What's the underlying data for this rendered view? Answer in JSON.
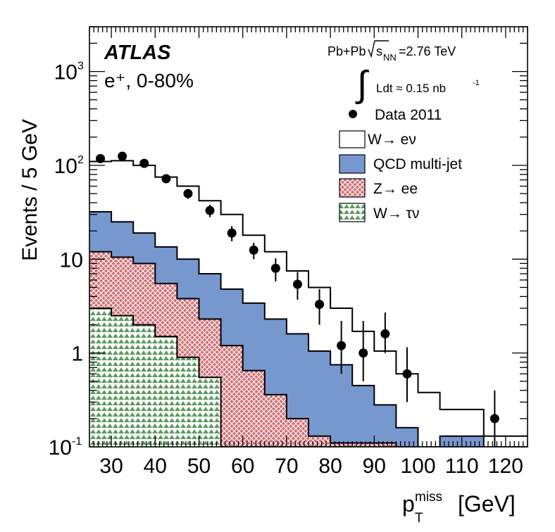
{
  "chart_data": {
    "type": "histogram-stacked-log",
    "experiment": "ATLAS",
    "channel": "e⁺, 0-80%",
    "collision": {
      "label": "Pb+Pb",
      "sqrt_prefix": "s",
      "sqrt_sub": "NN",
      "energy": "=2.76 TeV"
    },
    "luminosity": {
      "label": "Ldt ≈ 0.15 nb",
      "exp": "-1"
    },
    "ylabel": "Events / 5 GeV",
    "xlabel": {
      "base": "p",
      "sub": "T",
      "sup": "miss",
      "unit": "[GeV]"
    },
    "xlim": [
      25,
      125
    ],
    "ylim": [
      0.1,
      3000
    ],
    "yscale": "log",
    "x_ticks": [
      "30",
      "40",
      "50",
      "60",
      "70",
      "80",
      "90",
      "100",
      "110",
      "120"
    ],
    "y_ticks": [
      {
        "value": 0.1,
        "base": "10",
        "exp": "-1"
      },
      {
        "value": 1,
        "base": "1",
        "exp": ""
      },
      {
        "value": 10,
        "base": "10",
        "exp": ""
      },
      {
        "value": 100,
        "base": "10",
        "exp": "2"
      },
      {
        "value": 1000,
        "base": "10",
        "exp": "3"
      }
    ],
    "bins": [
      [
        25,
        30
      ],
      [
        30,
        35
      ],
      [
        35,
        40
      ],
      [
        40,
        45
      ],
      [
        45,
        50
      ],
      [
        50,
        55
      ],
      [
        55,
        60
      ],
      [
        60,
        65
      ],
      [
        65,
        70
      ],
      [
        70,
        75
      ],
      [
        75,
        80
      ],
      [
        80,
        85
      ],
      [
        85,
        90
      ],
      [
        90,
        95
      ],
      [
        95,
        100
      ],
      [
        100,
        105
      ],
      [
        105,
        110
      ],
      [
        110,
        115
      ],
      [
        115,
        120
      ],
      [
        120,
        125
      ]
    ],
    "stack": {
      "w_to_taunu": [
        3.0,
        2.5,
        2.0,
        1.5,
        0.9,
        0.55,
        0.1,
        0.1,
        0.1,
        0.1,
        0.1,
        0.1,
        0.1,
        0.1,
        0.1,
        0.1,
        0.1,
        0.1,
        0.1,
        0.1
      ],
      "z_to_ee": [
        12.0,
        10.5,
        9.0,
        5.5,
        3.8,
        2.3,
        1.2,
        0.65,
        0.36,
        0.2,
        0.13,
        0.11,
        0.11,
        0.11,
        0.1,
        0.1,
        0.1,
        0.1,
        0.1,
        0.1
      ],
      "qcd_total": [
        32.0,
        25.0,
        19.0,
        13.5,
        10.0,
        7.0,
        4.8,
        3.4,
        2.3,
        1.6,
        1.05,
        0.75,
        0.45,
        0.28,
        0.16,
        0.1,
        0.13,
        0.13,
        0.1,
        0.1
      ],
      "w_to_enu_total": [
        110,
        112,
        100,
        75,
        60,
        42,
        30,
        18,
        12,
        7.5,
        5.0,
        3.0,
        1.7,
        1.05,
        0.6,
        0.38,
        0.25,
        0.25,
        0.13,
        0.13
      ]
    },
    "data_points": [
      {
        "x": 27.5,
        "y": 118,
        "err": [
          10,
          10
        ]
      },
      {
        "x": 32.5,
        "y": 125,
        "err": [
          10,
          10
        ]
      },
      {
        "x": 37.5,
        "y": 105,
        "err": [
          9,
          9
        ]
      },
      {
        "x": 42.5,
        "y": 72,
        "err": [
          7,
          7
        ]
      },
      {
        "x": 47.5,
        "y": 50,
        "err": [
          6,
          6
        ]
      },
      {
        "x": 52.5,
        "y": 33,
        "err": [
          5,
          5
        ]
      },
      {
        "x": 57.5,
        "y": 19,
        "err": [
          3.5,
          3.5
        ]
      },
      {
        "x": 62.5,
        "y": 12.5,
        "err": [
          2.5,
          2.5
        ]
      },
      {
        "x": 67.5,
        "y": 8.0,
        "err": [
          2.2,
          2.2
        ]
      },
      {
        "x": 72.5,
        "y": 5.4,
        "err": [
          1.7,
          1.9
        ]
      },
      {
        "x": 77.5,
        "y": 3.3,
        "err": [
          1.3,
          1.5
        ]
      },
      {
        "x": 82.5,
        "y": 1.2,
        "err": [
          0.6,
          1.0
        ]
      },
      {
        "x": 87.5,
        "y": 1.0,
        "err": [
          0.5,
          1.2
        ]
      },
      {
        "x": 92.5,
        "y": 1.6,
        "err": [
          0.6,
          1.1
        ]
      },
      {
        "x": 97.5,
        "y": 0.6,
        "err": [
          0.3,
          0.55
        ]
      },
      {
        "x": 117.5,
        "y": 0.2,
        "err": [
          0.1,
          0.2
        ]
      }
    ],
    "legend": [
      {
        "key": "data",
        "label": "Data 2011"
      },
      {
        "key": "wenu",
        "label": "W→ eν"
      },
      {
        "key": "qcd",
        "label": "QCD multi-jet"
      },
      {
        "key": "zee",
        "label": "Z→ ee"
      },
      {
        "key": "wtaunu",
        "label": "W→ τν"
      }
    ],
    "colors": {
      "qcd": "#7797cf",
      "zee_bg": "#d16f74",
      "zee_line": "#ffffff",
      "wtaunu_bg": "#ffffff",
      "wtaunu_line": "#5c9a5c",
      "line": "#000000"
    }
  }
}
